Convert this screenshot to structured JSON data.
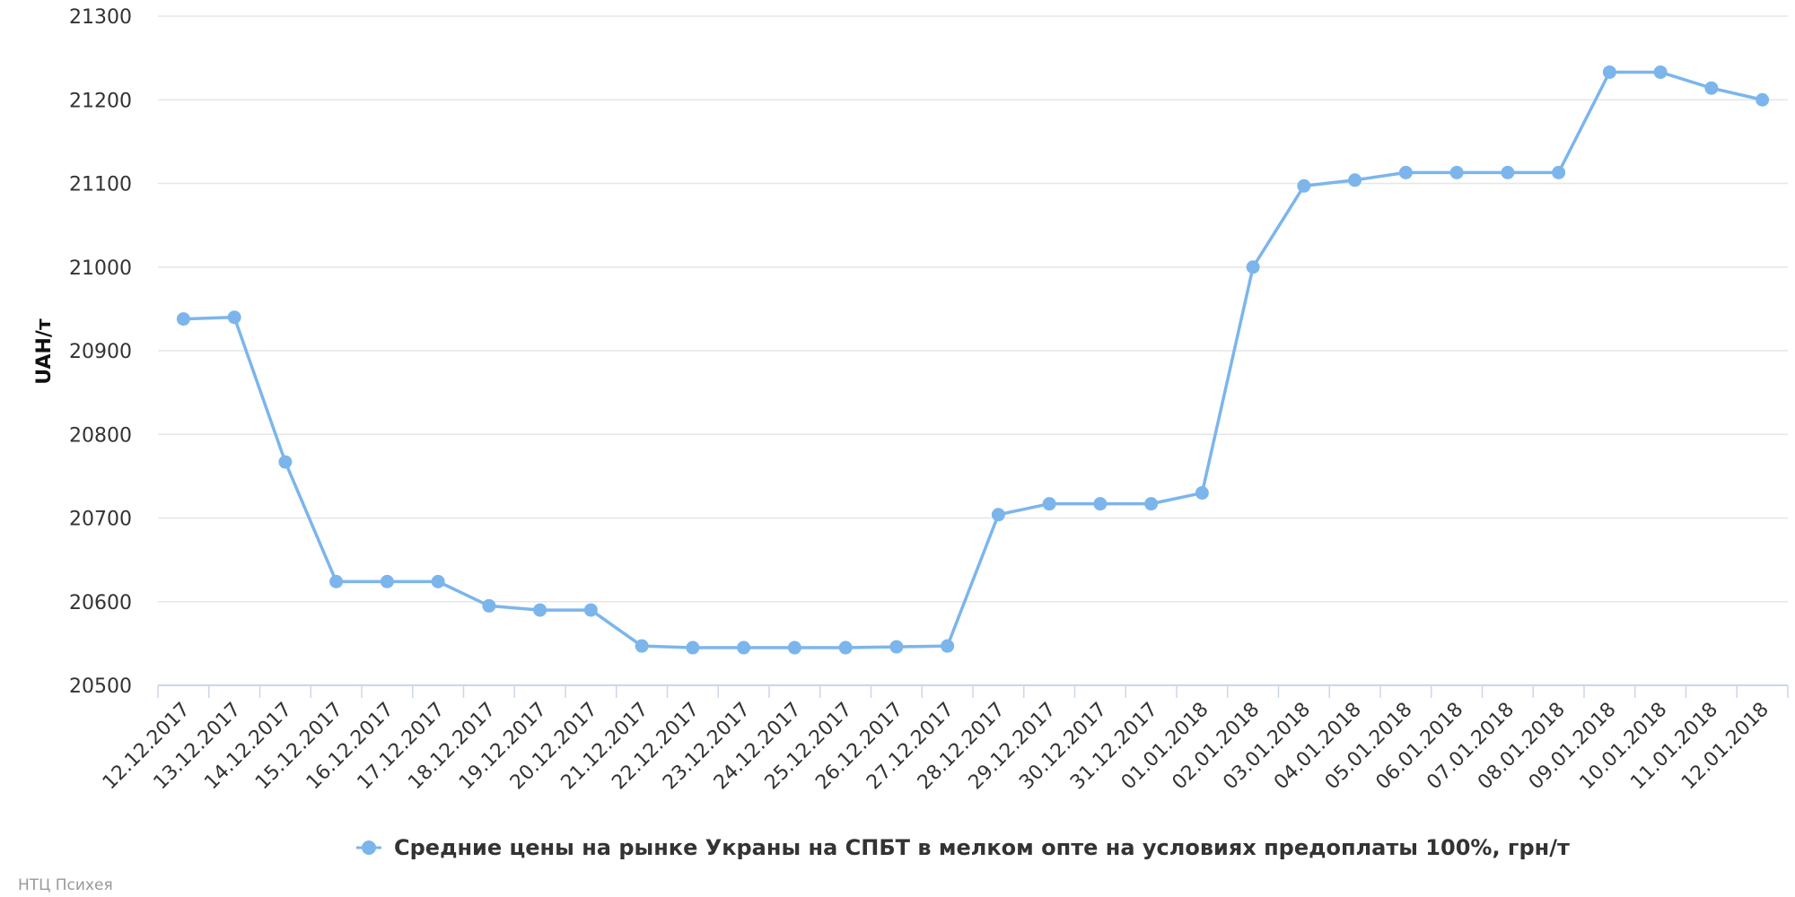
{
  "chart_data": {
    "type": "line",
    "ylabel": "UAH/т",
    "ylim": [
      20500,
      21300
    ],
    "yticks": [
      "20500",
      "20600",
      "20700",
      "20800",
      "20900",
      "21000",
      "21100",
      "21200",
      "21300"
    ],
    "grid": true,
    "legend_position": "bottom-center",
    "categories": [
      "12.12.2017",
      "13.12.2017",
      "14.12.2017",
      "15.12.2017",
      "16.12.2017",
      "17.12.2017",
      "18.12.2017",
      "19.12.2017",
      "20.12.2017",
      "21.12.2017",
      "22.12.2017",
      "23.12.2017",
      "24.12.2017",
      "25.12.2017",
      "26.12.2017",
      "27.12.2017",
      "28.12.2017",
      "29.12.2017",
      "30.12.2017",
      "31.12.2017",
      "01.01.2018",
      "02.01.2018",
      "03.01.2018",
      "04.01.2018",
      "05.01.2018",
      "06.01.2018",
      "07.01.2018",
      "08.01.2018",
      "09.01.2018",
      "10.01.2018",
      "11.01.2018",
      "12.01.2018"
    ],
    "series": [
      {
        "name": "Средние цены на рынке Украны на СПБТ в мелком опте на условиях предоплаты 100%, грн/т",
        "color": "#7cb5ec",
        "values": [
          20938,
          20940,
          20767,
          20624,
          20624,
          20624,
          20595,
          20590,
          20590,
          20547,
          20545,
          20545,
          20545,
          20545,
          20546,
          20547,
          20704,
          20717,
          20717,
          20717,
          20730,
          21000,
          21097,
          21104,
          21113,
          21113,
          21113,
          21113,
          21233,
          21233,
          21214,
          21200
        ]
      }
    ]
  },
  "credits": "НТЦ Психея"
}
